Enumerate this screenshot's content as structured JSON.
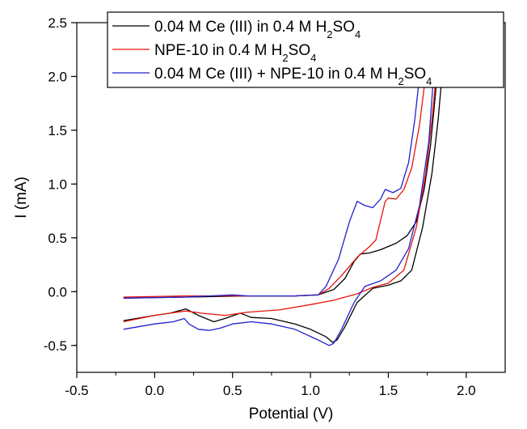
{
  "chart_data": {
    "type": "line",
    "title": "",
    "xlabel": "Potential (V)",
    "ylabel": "I (mA)",
    "xlim": [
      -0.5,
      2.25
    ],
    "ylim": [
      -0.75,
      2.5
    ],
    "xticks": [
      -0.5,
      0.0,
      0.5,
      1.0,
      1.5,
      2.0
    ],
    "xtick_labels": [
      "-0.5",
      "0.0",
      "0.5",
      "1.0",
      "1.5",
      "2.0"
    ],
    "yticks": [
      -0.5,
      0.0,
      0.5,
      1.0,
      1.5,
      2.0,
      2.5
    ],
    "ytick_labels": [
      "-0.5",
      "0.0",
      "0.5",
      "1.0",
      "1.5",
      "2.0",
      "2.5"
    ],
    "grid": false,
    "legend_position": "top",
    "series": [
      {
        "name_parts": [
          "0.04 M Ce (III)  in 0.4 M H",
          "2",
          "SO",
          "4"
        ],
        "color": "#000000",
        "points": [
          [
            -0.2,
            -0.06
          ],
          [
            0.2,
            -0.05
          ],
          [
            0.6,
            -0.04
          ],
          [
            0.9,
            -0.04
          ],
          [
            1.05,
            -0.03
          ],
          [
            1.15,
            0.02
          ],
          [
            1.22,
            0.12
          ],
          [
            1.28,
            0.28
          ],
          [
            1.32,
            0.35
          ],
          [
            1.38,
            0.36
          ],
          [
            1.45,
            0.39
          ],
          [
            1.55,
            0.45
          ],
          [
            1.62,
            0.52
          ],
          [
            1.68,
            0.65
          ],
          [
            1.73,
            0.95
          ],
          [
            1.77,
            1.35
          ],
          [
            1.8,
            1.8
          ],
          [
            1.83,
            2.3
          ],
          [
            1.85,
            2.6
          ],
          [
            1.88,
            2.6
          ],
          [
            1.85,
            2.1
          ],
          [
            1.82,
            1.6
          ],
          [
            1.78,
            1.1
          ],
          [
            1.72,
            0.6
          ],
          [
            1.65,
            0.2
          ],
          [
            1.58,
            0.1
          ],
          [
            1.5,
            0.06
          ],
          [
            1.4,
            0.03
          ],
          [
            1.3,
            -0.1
          ],
          [
            1.22,
            -0.33
          ],
          [
            1.17,
            -0.45
          ],
          [
            1.14,
            -0.47
          ],
          [
            1.1,
            -0.42
          ],
          [
            1.0,
            -0.35
          ],
          [
            0.9,
            -0.3
          ],
          [
            0.75,
            -0.25
          ],
          [
            0.62,
            -0.24
          ],
          [
            0.55,
            -0.2
          ],
          [
            0.45,
            -0.25
          ],
          [
            0.38,
            -0.28
          ],
          [
            0.28,
            -0.22
          ],
          [
            0.2,
            -0.16
          ],
          [
            0.1,
            -0.2
          ],
          [
            0.0,
            -0.22
          ],
          [
            -0.2,
            -0.27
          ]
        ]
      },
      {
        "name_parts": [
          "NPE-10  in 0.4 M H",
          "2",
          "SO",
          "4"
        ],
        "color": "#e8140c",
        "points": [
          [
            -0.2,
            -0.05
          ],
          [
            0.2,
            -0.04
          ],
          [
            0.6,
            -0.04
          ],
          [
            0.9,
            -0.04
          ],
          [
            1.05,
            -0.03
          ],
          [
            1.12,
            0.03
          ],
          [
            1.2,
            0.15
          ],
          [
            1.3,
            0.32
          ],
          [
            1.38,
            0.42
          ],
          [
            1.42,
            0.48
          ],
          [
            1.46,
            0.72
          ],
          [
            1.48,
            0.84
          ],
          [
            1.5,
            0.87
          ],
          [
            1.55,
            0.86
          ],
          [
            1.6,
            0.95
          ],
          [
            1.65,
            1.15
          ],
          [
            1.7,
            1.55
          ],
          [
            1.73,
            1.9
          ],
          [
            1.76,
            2.3
          ],
          [
            1.78,
            2.6
          ],
          [
            1.85,
            2.6
          ],
          [
            1.82,
            2.2
          ],
          [
            1.78,
            1.6
          ],
          [
            1.74,
            1.1
          ],
          [
            1.68,
            0.6
          ],
          [
            1.6,
            0.2
          ],
          [
            1.5,
            0.08
          ],
          [
            1.4,
            0.04
          ],
          [
            1.3,
            -0.02
          ],
          [
            1.15,
            -0.08
          ],
          [
            1.0,
            -0.12
          ],
          [
            0.8,
            -0.17
          ],
          [
            0.6,
            -0.19
          ],
          [
            0.45,
            -0.22
          ],
          [
            0.3,
            -0.2
          ],
          [
            0.2,
            -0.18
          ],
          [
            0.1,
            -0.2
          ],
          [
            0.0,
            -0.22
          ],
          [
            -0.2,
            -0.28
          ]
        ]
      },
      {
        "name_parts": [
          "0.04 M Ce (III) + NPE-10  in 0.4 M H",
          "2",
          "SO",
          "4"
        ],
        "color": "#2020cc",
        "points": [
          [
            -0.2,
            -0.06
          ],
          [
            0.2,
            -0.05
          ],
          [
            0.5,
            -0.03
          ],
          [
            0.6,
            -0.04
          ],
          [
            0.9,
            -0.04
          ],
          [
            1.05,
            -0.03
          ],
          [
            1.1,
            0.05
          ],
          [
            1.18,
            0.3
          ],
          [
            1.25,
            0.65
          ],
          [
            1.3,
            0.84
          ],
          [
            1.35,
            0.8
          ],
          [
            1.4,
            0.78
          ],
          [
            1.45,
            0.86
          ],
          [
            1.48,
            0.95
          ],
          [
            1.53,
            0.92
          ],
          [
            1.58,
            0.96
          ],
          [
            1.63,
            1.2
          ],
          [
            1.67,
            1.6
          ],
          [
            1.7,
            2.0
          ],
          [
            1.73,
            2.4
          ],
          [
            1.75,
            2.6
          ],
          [
            1.82,
            2.6
          ],
          [
            1.79,
            2.0
          ],
          [
            1.76,
            1.4
          ],
          [
            1.7,
            0.8
          ],
          [
            1.63,
            0.4
          ],
          [
            1.55,
            0.2
          ],
          [
            1.45,
            0.1
          ],
          [
            1.35,
            0.05
          ],
          [
            1.28,
            -0.1
          ],
          [
            1.2,
            -0.35
          ],
          [
            1.15,
            -0.48
          ],
          [
            1.12,
            -0.5
          ],
          [
            1.05,
            -0.45
          ],
          [
            0.9,
            -0.35
          ],
          [
            0.75,
            -0.3
          ],
          [
            0.62,
            -0.28
          ],
          [
            0.5,
            -0.3
          ],
          [
            0.42,
            -0.34
          ],
          [
            0.35,
            -0.36
          ],
          [
            0.28,
            -0.35
          ],
          [
            0.22,
            -0.3
          ],
          [
            0.19,
            -0.25
          ],
          [
            0.12,
            -0.28
          ],
          [
            0.0,
            -0.3
          ],
          [
            -0.2,
            -0.35
          ]
        ]
      }
    ]
  }
}
